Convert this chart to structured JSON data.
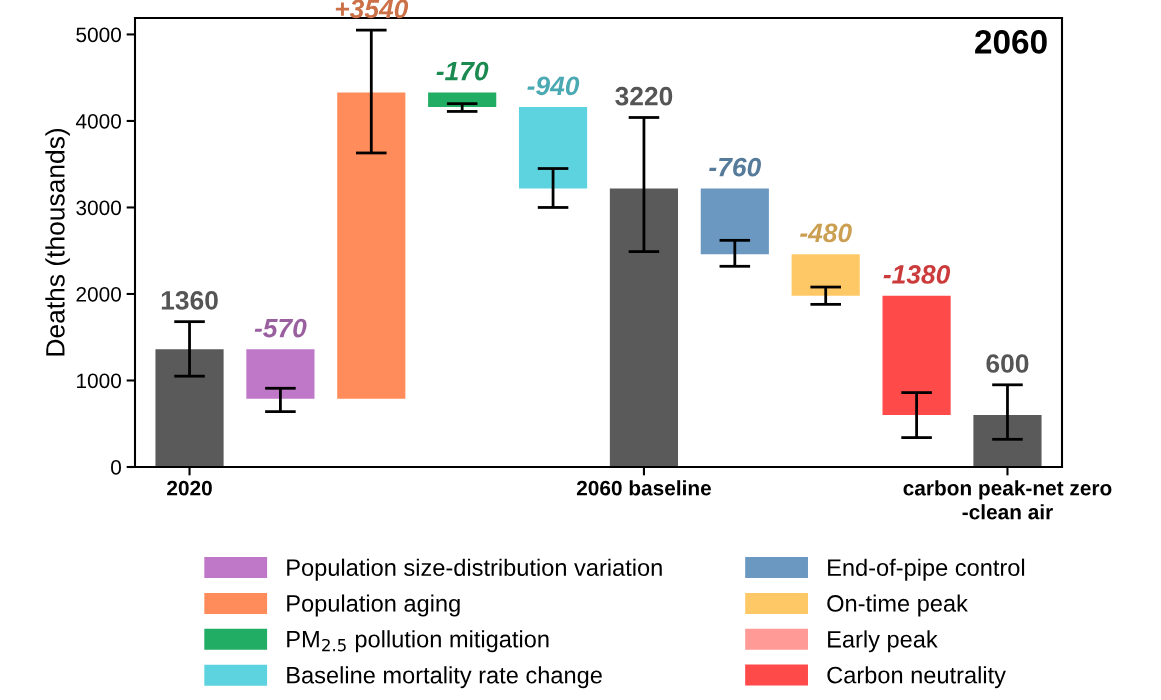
{
  "chart_data": {
    "type": "bar",
    "title": "2060",
    "ylabel": "Deaths (thousands)",
    "categories": [
      "2020",
      null,
      null,
      null,
      null,
      "2060 baseline",
      null,
      null,
      null,
      "carbon peak-net zero\n-clean air"
    ],
    "series": [
      {
        "color": "#5a5a5a",
        "values": [
          1360,
          null,
          null,
          null,
          null,
          3220,
          null,
          null,
          null,
          600
        ],
        "base": [
          0,
          null,
          null,
          null,
          null,
          0,
          null,
          null,
          null,
          0
        ],
        "errors": [
          [
            1050,
            1680
          ],
          null,
          null,
          null,
          null,
          [
            2490,
            4040
          ],
          null,
          null,
          null,
          [
            320,
            950
          ]
        ],
        "value_labels": [
          "1360",
          null,
          null,
          null,
          null,
          "3220",
          null,
          null,
          null,
          "600"
        ]
      },
      {
        "name": "Population size-distribution variation",
        "color": "#bf77c7",
        "values": [
          null,
          -570,
          null,
          null,
          null,
          null,
          null,
          null,
          null,
          null
        ],
        "base": [
          null,
          1360,
          null,
          null,
          null,
          null,
          null,
          null,
          null,
          null
        ],
        "errors": [
          null,
          [
            640,
            910
          ],
          null,
          null,
          null,
          null,
          null,
          null,
          null,
          null
        ],
        "value_labels": [
          null,
          "-570",
          null,
          null,
          null,
          null,
          null,
          null,
          null,
          null
        ]
      },
      {
        "name": "Population aging",
        "color": "#ff8c5a",
        "values": [
          null,
          null,
          3540,
          null,
          null,
          null,
          null,
          null,
          null,
          null
        ],
        "base": [
          null,
          null,
          790,
          null,
          null,
          null,
          null,
          null,
          null,
          null
        ],
        "errors": [
          null,
          null,
          [
            3630,
            5050
          ],
          null,
          null,
          null,
          null,
          null,
          null,
          null
        ],
        "value_labels": [
          null,
          null,
          "+3540",
          null,
          null,
          null,
          null,
          null,
          null,
          null
        ]
      },
      {
        "name": "PM$_{2.5}$ pollution mitigation",
        "color": "#22ad64",
        "values": [
          null,
          null,
          null,
          -170,
          null,
          null,
          null,
          null,
          null,
          null
        ],
        "base": [
          null,
          null,
          null,
          4330,
          null,
          null,
          null,
          null,
          null,
          null
        ],
        "errors": [
          null,
          null,
          null,
          [
            4110,
            4200
          ],
          null,
          null,
          null,
          null,
          null,
          null
        ],
        "value_labels": [
          null,
          null,
          null,
          "-170",
          null,
          null,
          null,
          null,
          null,
          null
        ]
      },
      {
        "name": "Baseline mortality rate change",
        "color": "#5dd3df",
        "values": [
          null,
          null,
          null,
          null,
          -940,
          null,
          null,
          null,
          null,
          null
        ],
        "base": [
          null,
          null,
          null,
          null,
          4160,
          null,
          null,
          null,
          null,
          null
        ],
        "errors": [
          null,
          null,
          null,
          null,
          [
            3000,
            3450
          ],
          null,
          null,
          null,
          null,
          null
        ],
        "value_labels": [
          null,
          null,
          null,
          null,
          "-940",
          null,
          null,
          null,
          null,
          null
        ]
      },
      {
        "name": "End-of-pipe control",
        "color": "#6b98c0",
        "values": [
          null,
          null,
          null,
          null,
          null,
          null,
          -760,
          null,
          null,
          null
        ],
        "base": [
          null,
          null,
          null,
          null,
          null,
          null,
          3220,
          null,
          null,
          null
        ],
        "errors": [
          null,
          null,
          null,
          null,
          null,
          null,
          [
            2320,
            2620
          ],
          null,
          null,
          null
        ],
        "value_labels": [
          null,
          null,
          null,
          null,
          null,
          null,
          "-760",
          null,
          null,
          null
        ]
      },
      {
        "name": "On-time peak",
        "color": "#ffc866",
        "values": [
          null,
          null,
          null,
          null,
          null,
          null,
          null,
          -480,
          null,
          null
        ],
        "base": [
          null,
          null,
          null,
          null,
          null,
          null,
          null,
          2460,
          null,
          null
        ],
        "errors": [
          null,
          null,
          null,
          null,
          null,
          null,
          null,
          [
            1880,
            2080
          ],
          null,
          null
        ],
        "value_labels": [
          null,
          null,
          null,
          null,
          null,
          null,
          null,
          "-480",
          null,
          null
        ]
      },
      {
        "name": "Early peak",
        "color": "#ff9a96",
        "values": [
          null,
          null,
          null,
          null,
          null,
          null,
          null,
          null,
          null,
          null
        ]
      },
      {
        "name": "Carbon neutrality",
        "color": "#ff4a4a",
        "values": [
          null,
          null,
          null,
          null,
          null,
          null,
          null,
          null,
          -1380,
          null
        ],
        "base": [
          null,
          null,
          null,
          null,
          null,
          null,
          null,
          null,
          1980,
          null
        ],
        "errors": [
          null,
          null,
          null,
          null,
          null,
          null,
          null,
          null,
          [
            340,
            860
          ],
          null
        ],
        "value_labels": [
          null,
          null,
          null,
          null,
          null,
          null,
          null,
          null,
          "-1380",
          null
        ]
      }
    ],
    "ylim": [
      0,
      5190
    ],
    "yticks": [
      0,
      1000,
      2000,
      3000,
      4000,
      5000
    ],
    "legend": "bottom",
    "grid": false
  }
}
